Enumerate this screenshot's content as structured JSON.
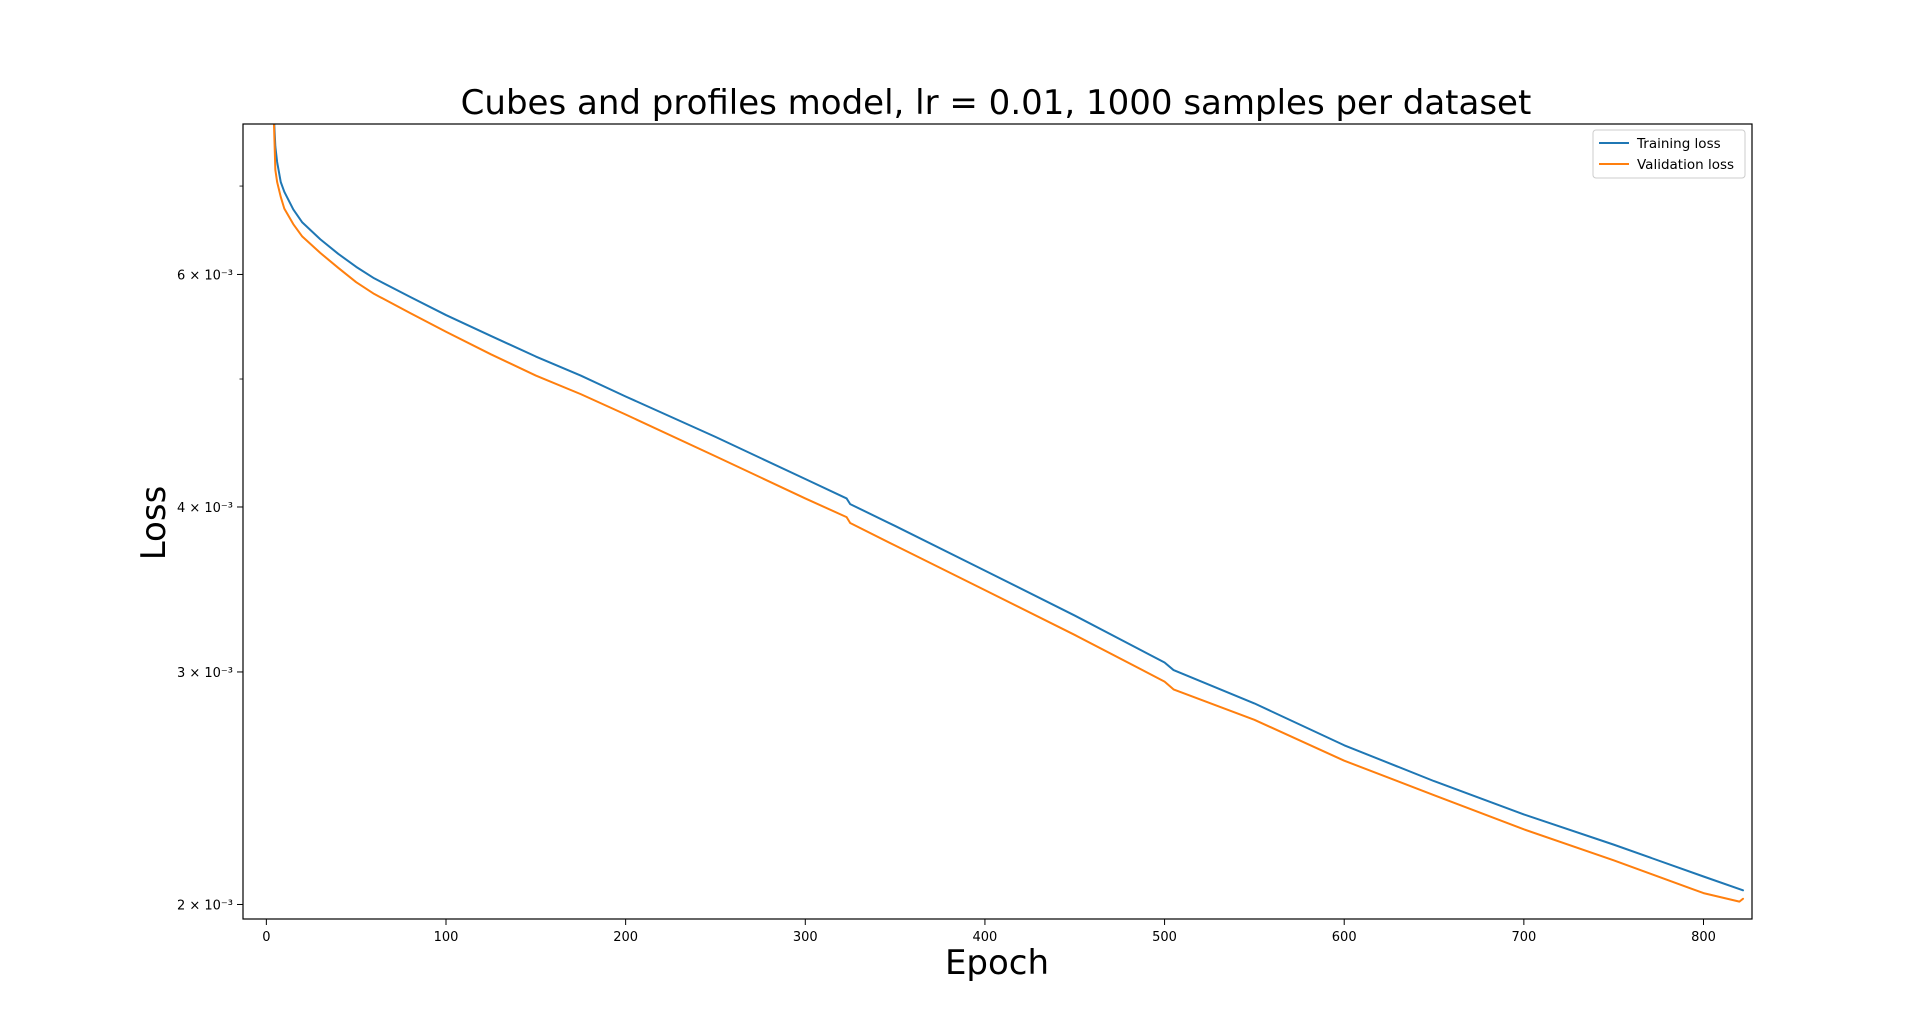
{
  "chart_data": {
    "type": "line",
    "title": "Cubes and profiles model, lr = 0.01, 1000 samples per dataset",
    "xlabel": "Epoch",
    "ylabel": "Loss",
    "xlim": [
      -13,
      827
    ],
    "ylim": [
      0.00195,
      0.0078
    ],
    "yscale": "log",
    "grid": false,
    "legend_position": "top-right",
    "x_ticks": [
      0,
      100,
      200,
      300,
      400,
      500,
      600,
      700,
      800
    ],
    "x_tick_labels": [
      "0",
      "100",
      "200",
      "300",
      "400",
      "500",
      "600",
      "700",
      "800"
    ],
    "y_major_ticks": [
      0.002,
      0.003,
      0.004,
      0.006
    ],
    "y_major_tick_labels": [
      "2 × 10⁻³",
      "3 × 10⁻³",
      "4 × 10⁻³",
      "6 × 10⁻³"
    ],
    "y_minor_ticks": [
      0.005,
      0.007
    ],
    "series": [
      {
        "name": "Training loss",
        "color": "#1f77b4",
        "x": [
          4,
          5,
          6,
          8,
          10,
          15,
          20,
          30,
          40,
          50,
          60,
          80,
          100,
          125,
          150,
          175,
          200,
          250,
          300,
          323,
          325,
          350,
          400,
          450,
          500,
          505,
          550,
          600,
          650,
          700,
          750,
          800,
          822
        ],
        "y": [
          0.008,
          0.0075,
          0.0073,
          0.00705,
          0.00693,
          0.00672,
          0.00657,
          0.00638,
          0.00622,
          0.00608,
          0.00596,
          0.00577,
          0.00559,
          0.00539,
          0.0052,
          0.00503,
          0.00485,
          0.00452,
          0.0042,
          0.00406,
          0.00402,
          0.00387,
          0.00358,
          0.00331,
          0.00305,
          0.00301,
          0.00284,
          0.00264,
          0.00248,
          0.00234,
          0.00222,
          0.0021,
          0.00205
        ]
      },
      {
        "name": "Validation loss",
        "color": "#ff7f0e",
        "x": [
          4,
          5,
          6,
          8,
          10,
          15,
          20,
          30,
          40,
          50,
          60,
          80,
          100,
          125,
          150,
          175,
          200,
          250,
          300,
          323,
          325,
          350,
          400,
          450,
          500,
          505,
          550,
          600,
          650,
          700,
          750,
          800,
          820,
          822
        ],
        "y": [
          0.008,
          0.0072,
          0.00705,
          0.00687,
          0.00673,
          0.00655,
          0.00641,
          0.00623,
          0.00607,
          0.00592,
          0.0058,
          0.00561,
          0.00543,
          0.00522,
          0.00503,
          0.00487,
          0.0047,
          0.00437,
          0.00406,
          0.00393,
          0.00389,
          0.00374,
          0.00346,
          0.0032,
          0.00295,
          0.00291,
          0.00276,
          0.00257,
          0.00242,
          0.00228,
          0.00216,
          0.00204,
          0.00201,
          0.00202
        ]
      }
    ]
  }
}
